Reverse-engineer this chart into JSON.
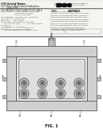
{
  "page_bg": "#f4f4f0",
  "barcode_color": "#111111",
  "text_color": "#333333",
  "dark_text": "#111111",
  "divider_color": "#888888",
  "diagram": {
    "tray_fill": "#d0d0d0",
    "tray_edge": "#555555",
    "inner_fill": "#c8c8c8",
    "inner_edge": "#444444",
    "cable_outer_fill": "#c0c0c0",
    "cable_outer_edge": "#555555",
    "cable_inner_fill": "#909090",
    "cable_inner_edge": "#666666",
    "cable_core_fill": "#555555",
    "white_fill": "#ffffff",
    "connector_fill": "#bbbbbb"
  }
}
